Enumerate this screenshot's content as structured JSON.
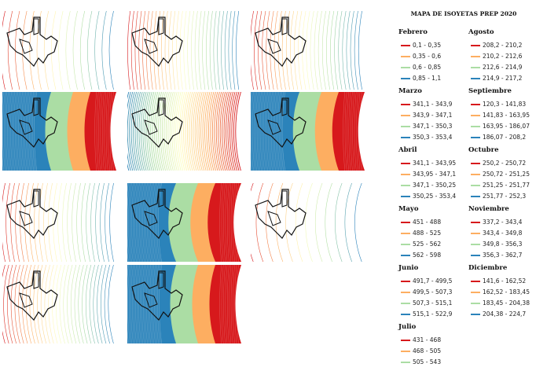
{
  "title": "MAPA DE ISOYETAS PREP 2020",
  "colors": {
    "c1": "#d7191c",
    "c2": "#fdae61",
    "c3": "#abdda4",
    "c4": "#2b83ba"
  },
  "maps": [
    {
      "id": "map-1",
      "style": "lines",
      "lines": 16,
      "curve": 1
    },
    {
      "id": "map-2",
      "style": "lines",
      "lines": 30,
      "curve": 0.6
    },
    {
      "id": "map-3",
      "style": "lines",
      "lines": 28,
      "curve": 0.8
    },
    {
      "id": "map-4",
      "style": "filled",
      "curve": 1
    },
    {
      "id": "map-5",
      "style": "dense",
      "curve": 1.2
    },
    {
      "id": "map-6",
      "style": "filled",
      "curve": 1.1
    },
    {
      "id": "map-7",
      "style": "lines",
      "lines": 24,
      "curve": 0.9
    },
    {
      "id": "map-8",
      "style": "filled",
      "curve": 1.3
    },
    {
      "id": "map-9",
      "style": "lines",
      "lines": 12,
      "curve": 1.6
    },
    {
      "id": "map-10",
      "style": "lines",
      "lines": 30,
      "curve": 1.2
    },
    {
      "id": "map-11",
      "style": "filled",
      "curve": 1
    }
  ],
  "legend_left": [
    {
      "month": "Febrero",
      "items": [
        "0,1 - 0,35",
        "0,35 - 0,6",
        "0,6 - 0,85",
        "0,85 - 1,1"
      ]
    },
    {
      "month": "Marzo",
      "items": [
        "341,1 - 343,9",
        "343,9 - 347,1",
        "347,1 - 350,3",
        "350,3 - 353,4"
      ]
    },
    {
      "month": "Abril",
      "items": [
        "341,1 - 343,95",
        "343,95 - 347,1",
        "347,1 - 350,25",
        "350,25 - 353,4"
      ]
    },
    {
      "month": "Mayo",
      "items": [
        "451 - 488",
        "488 - 525",
        "525 - 562",
        "562 - 598"
      ]
    },
    {
      "month": "Junio",
      "items": [
        "491,7 - 499,5",
        "499,5 - 507,3",
        "507,3 - 515,1",
        "515,1 - 522,9"
      ]
    },
    {
      "month": "Julio",
      "items": [
        "431 - 468",
        "468 - 505",
        "505 - 543"
      ]
    }
  ],
  "legend_right": [
    {
      "month": "Agosto",
      "items": [
        "208,2 - 210,2",
        "210,2 - 212,6",
        "212,6 - 214,9",
        "214,9 - 217,2"
      ]
    },
    {
      "month": "Septiembre",
      "items": [
        "120,3 - 141,83",
        "141,83 - 163,95",
        "163,95 - 186,07",
        "186,07 - 208,2"
      ]
    },
    {
      "month": "Octubre",
      "items": [
        "250,2 - 250,72",
        "250,72 - 251,25",
        "251,25 - 251,77",
        "251,77 - 252,3"
      ]
    },
    {
      "month": "Noviembre",
      "items": [
        "337,2 - 343,4",
        "343,4 - 349,8",
        "349,8 - 356,3",
        "356,3 - 362,7"
      ]
    },
    {
      "month": "Diciembre",
      "items": [
        "141,6 - 162,52",
        "162,52 - 183,45",
        "183,45 - 204,38",
        "204,38 - 224,7"
      ]
    }
  ]
}
